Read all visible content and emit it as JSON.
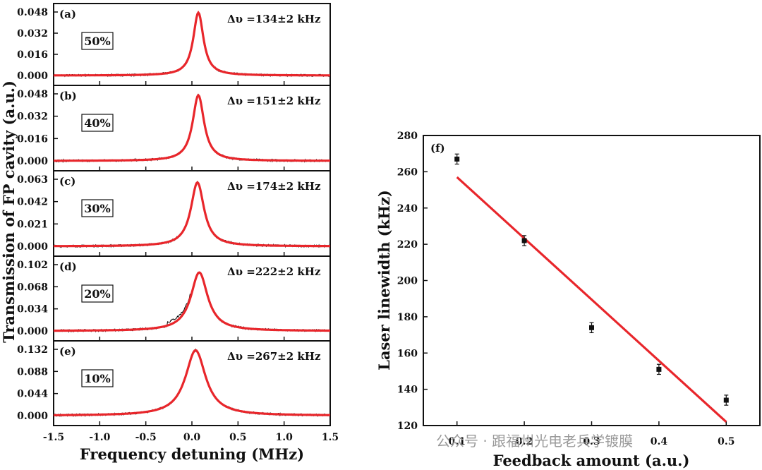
{
  "watermark": "公众号 · 跟福州光电老兵学镀膜",
  "chart_data": [
    {
      "type": "line",
      "ylabel": "Transmission of FP cavity (a.u.)",
      "xlabel": "Frequency detuning (MHz)",
      "xlim": [
        -1.5,
        1.5
      ],
      "xticks": [
        "-1.5",
        "-1.0",
        "-0.5",
        "0.0",
        "0.5",
        "1.0",
        "1.5"
      ],
      "series_colors": {
        "measured": "#000000",
        "fit": "#e8262b"
      },
      "panels": [
        {
          "label": "(a)",
          "feedback": "50%",
          "linewidth_text": "Δυ =134±2 kHz",
          "yticks": [
            "0.000",
            "0.016",
            "0.032",
            "0.048"
          ],
          "ymax": 0.048,
          "peak": 0.0475,
          "center": 0.07,
          "fwhm_mhz": 0.134
        },
        {
          "label": "(b)",
          "feedback": "40%",
          "linewidth_text": "Δυ =151±2 kHz",
          "yticks": [
            "0.000",
            "0.016",
            "0.032",
            "0.048"
          ],
          "ymax": 0.048,
          "peak": 0.047,
          "center": 0.07,
          "fwhm_mhz": 0.151
        },
        {
          "label": "(c)",
          "feedback": "30%",
          "linewidth_text": "Δυ =174±2 kHz",
          "yticks": [
            "0.000",
            "0.021",
            "0.042",
            "0.063"
          ],
          "ymax": 0.063,
          "peak": 0.06,
          "center": 0.06,
          "fwhm_mhz": 0.174
        },
        {
          "label": "(d)",
          "feedback": "20%",
          "linewidth_text": "Δυ =222±2 kHz",
          "yticks": [
            "0.000",
            "0.034",
            "0.068",
            "0.102"
          ],
          "ymax": 0.102,
          "peak": 0.09,
          "center": 0.08,
          "fwhm_mhz": 0.222
        },
        {
          "label": "(e)",
          "feedback": "10%",
          "linewidth_text": "Δυ =267±2 kHz",
          "yticks": [
            "0.000",
            "0.044",
            "0.088",
            "0.132"
          ],
          "ymax": 0.132,
          "peak": 0.13,
          "center": 0.04,
          "fwhm_mhz": 0.267
        }
      ]
    },
    {
      "type": "scatter",
      "label": "(f)",
      "xlabel": "Feedback amount (a.u.)",
      "ylabel": "Laser linewidth (kHz)",
      "xlim": [
        0.05,
        0.55
      ],
      "ylim": [
        120,
        280
      ],
      "xticks": [
        "0.1",
        "0.2",
        "0.3",
        "0.4",
        "0.5"
      ],
      "yticks": [
        "120",
        "140",
        "160",
        "180",
        "200",
        "220",
        "240",
        "260",
        "280"
      ],
      "points": [
        {
          "x": 0.1,
          "y": 267,
          "err": 2
        },
        {
          "x": 0.2,
          "y": 222,
          "err": 2
        },
        {
          "x": 0.3,
          "y": 174,
          "err": 2
        },
        {
          "x": 0.4,
          "y": 151,
          "err": 2
        },
        {
          "x": 0.5,
          "y": 134,
          "err": 2
        }
      ],
      "fit_line": {
        "x": [
          0.1,
          0.5
        ],
        "y": [
          257,
          122
        ],
        "color": "#e8262b"
      }
    }
  ]
}
